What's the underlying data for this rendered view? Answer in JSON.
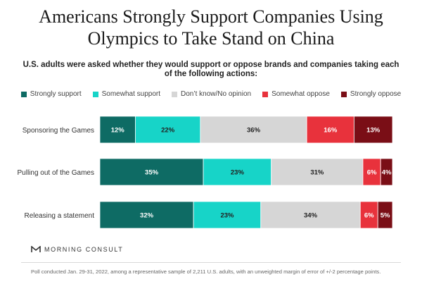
{
  "title": "Americans Strongly Support Companies Using Olympics to Take Stand on China",
  "subtitle": "U.S. adults were asked whether they would support or oppose brands and companies taking each of the following actions:",
  "chart_data": {
    "type": "bar",
    "orientation": "horizontal",
    "stacked": true,
    "categories": [
      "Sponsoring the Games",
      "Pulling out of the Games",
      "Releasing a statement"
    ],
    "series": [
      {
        "name": "Strongly support",
        "color": "#0e6b64",
        "values": [
          12,
          35,
          32
        ]
      },
      {
        "name": "Somewhat support",
        "color": "#17d4c8",
        "values": [
          22,
          23,
          23
        ]
      },
      {
        "name": "Don’t know/No opinion",
        "color": "#d6d6d6",
        "values": [
          36,
          31,
          34
        ]
      },
      {
        "name": "Somewhat oppose",
        "color": "#e8323c",
        "values": [
          16,
          6,
          6
        ]
      },
      {
        "name": "Strongly oppose",
        "color": "#7a0e16",
        "values": [
          13,
          4,
          5
        ]
      }
    ],
    "data_labels": [
      [
        "12%",
        "22%",
        "36%",
        "16%",
        "13%"
      ],
      [
        "35%",
        "23%",
        "31%",
        "6%",
        "4%"
      ],
      [
        "32%",
        "23%",
        "34%",
        "6%",
        "5%"
      ]
    ],
    "legend_position": "top",
    "grid": false
  },
  "logo": {
    "text": "MORNING CONSULT",
    "icon": "morning-consult-logo-icon"
  },
  "footnote": "Poll conducted Jan. 29-31, 2022, among a representative sample of 2,211 U.S. adults, with an unweighted margin of error of +/-2 percentage points."
}
